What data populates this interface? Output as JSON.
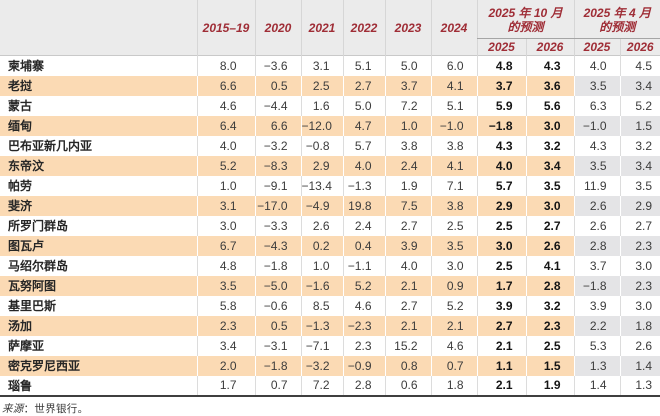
{
  "page": {
    "source_label": "来源",
    "source_text": "：世界银行。"
  },
  "table": {
    "history_headers": [
      "2015–19",
      "2020",
      "2021",
      "2022",
      "2023",
      "2024"
    ],
    "forecast_groups": [
      {
        "title_line1": "2025 年 10 月",
        "title_line2": "的预测",
        "years": [
          "2025",
          "2026"
        ]
      },
      {
        "title_line1": "2025 年 4 月",
        "title_line2": "的预测",
        "years": [
          "2025",
          "2026"
        ]
      }
    ]
  },
  "colors": {
    "header_text_red": "#9F2D36",
    "header_band_gray": "#EBEBEB",
    "alt_row_orange": "#FBDAB4",
    "april_forecast_gray": "#E4E4E6",
    "bottom_rule_dark": "#3F3F3F"
  },
  "chart_data": {
    "type": "table",
    "columns": [
      "2015–19",
      "2020",
      "2021",
      "2022",
      "2023",
      "2024",
      "2025年10月的预测 2025",
      "2025年10月的预测 2026",
      "2025年4月的预测 2025",
      "2025年4月的预测 2026"
    ],
    "rows": [
      {
        "name": "柬埔寨",
        "values": [
          8.0,
          -3.6,
          3.1,
          5.1,
          5.0,
          6.0,
          4.8,
          4.3,
          4.0,
          4.5
        ]
      },
      {
        "name": "老挝",
        "values": [
          6.6,
          0.5,
          2.5,
          2.7,
          3.7,
          4.1,
          3.7,
          3.6,
          3.5,
          3.4
        ]
      },
      {
        "name": "蒙古",
        "values": [
          4.6,
          -4.4,
          1.6,
          5.0,
          7.2,
          5.1,
          5.9,
          5.6,
          6.3,
          5.2
        ]
      },
      {
        "name": "缅甸",
        "values": [
          6.4,
          6.6,
          -12.0,
          4.7,
          1.0,
          -1.0,
          -1.8,
          3.0,
          -1.0,
          1.5
        ]
      },
      {
        "name": "巴布亚新几内亚",
        "values": [
          4.0,
          -3.2,
          -0.8,
          5.7,
          3.8,
          3.8,
          4.3,
          3.2,
          4.3,
          3.2
        ]
      },
      {
        "name": "东帝汶",
        "values": [
          5.2,
          -8.3,
          2.9,
          4.0,
          2.4,
          4.1,
          4.0,
          3.4,
          3.5,
          3.4
        ]
      },
      {
        "name": "帕劳",
        "values": [
          1.0,
          -9.1,
          -13.4,
          -1.3,
          1.9,
          7.1,
          5.7,
          3.5,
          11.9,
          3.5
        ]
      },
      {
        "name": "斐济",
        "values": [
          3.1,
          -17.0,
          -4.9,
          19.8,
          7.5,
          3.8,
          2.9,
          3.0,
          2.6,
          2.9
        ]
      },
      {
        "name": "所罗门群岛",
        "values": [
          3.0,
          -3.3,
          2.6,
          2.4,
          2.7,
          2.5,
          2.5,
          2.7,
          2.6,
          2.7
        ]
      },
      {
        "name": "图瓦卢",
        "values": [
          6.7,
          -4.3,
          0.2,
          0.4,
          3.9,
          3.5,
          3.0,
          2.6,
          2.8,
          2.3
        ]
      },
      {
        "name": "马绍尔群岛",
        "values": [
          4.8,
          -1.8,
          1.0,
          -1.1,
          4.0,
          3.0,
          2.5,
          4.1,
          3.7,
          3.0
        ]
      },
      {
        "name": "瓦努阿图",
        "values": [
          3.5,
          -5.0,
          -1.6,
          5.2,
          2.1,
          0.9,
          1.7,
          2.8,
          -1.8,
          2.3
        ]
      },
      {
        "name": "基里巴斯",
        "values": [
          5.8,
          -0.6,
          8.5,
          4.6,
          2.7,
          5.2,
          3.9,
          3.2,
          3.9,
          3.0
        ]
      },
      {
        "name": "汤加",
        "values": [
          2.3,
          0.5,
          -1.3,
          -2.3,
          2.1,
          2.1,
          2.7,
          2.3,
          2.2,
          1.8
        ]
      },
      {
        "name": "萨摩亚",
        "values": [
          3.4,
          -3.1,
          -7.1,
          2.3,
          15.2,
          4.6,
          2.1,
          2.5,
          5.3,
          2.6
        ]
      },
      {
        "name": "密克罗尼西亚",
        "values": [
          2.0,
          -1.8,
          -3.2,
          -0.9,
          0.8,
          0.7,
          1.1,
          1.5,
          1.3,
          1.4
        ]
      },
      {
        "name": "瑙鲁",
        "values": [
          1.7,
          0.7,
          7.2,
          2.8,
          0.6,
          1.8,
          2.1,
          1.9,
          1.4,
          1.3
        ]
      }
    ]
  }
}
